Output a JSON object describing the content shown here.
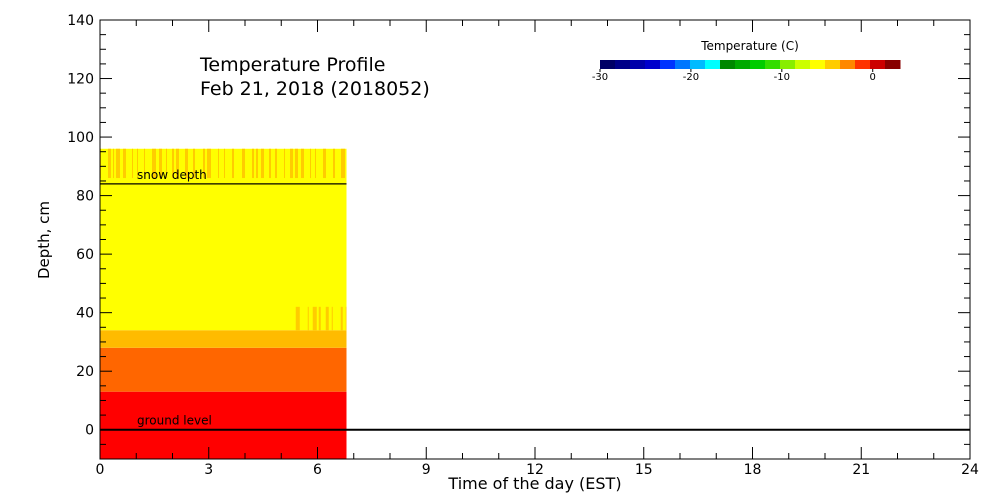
{
  "chart_data": {
    "type": "heatmap",
    "title": "Temperature Profile",
    "subtitle": "Feb 21, 2018 (2018052)",
    "xlabel": "Time of the day (EST)",
    "ylabel": "Depth, cm",
    "xlim": [
      0,
      24
    ],
    "ylim": [
      -10,
      140
    ],
    "x_ticks": [
      0,
      3,
      6,
      9,
      12,
      15,
      18,
      21,
      24
    ],
    "y_ticks": [
      0,
      20,
      40,
      60,
      80,
      100,
      120,
      140
    ],
    "data_extent_hours": 6.8,
    "layers": [
      {
        "depth_from": -10,
        "depth_to": 13,
        "temperature_c": -0.5,
        "color": "#ff0000"
      },
      {
        "depth_from": 13,
        "depth_to": 28,
        "temperature_c": -2,
        "color": "#ff6600"
      },
      {
        "depth_from": 28,
        "depth_to": 34,
        "temperature_c": -3.5,
        "color": "#ffbb00"
      },
      {
        "depth_from": 34,
        "depth_to": 96,
        "temperature_c": -5,
        "color": "#ffff00"
      }
    ],
    "mixed_bands": [
      {
        "depth_from": 34,
        "depth_to": 42,
        "hours_from": 5.4,
        "hours_to": 6.8,
        "color": "#ffcc00"
      },
      {
        "depth_from": 86,
        "depth_to": 96,
        "hours_from": 0,
        "hours_to": 6.8,
        "color": "#ffcc00"
      }
    ],
    "lines": [
      {
        "label": "snow depth",
        "value": 84
      },
      {
        "label": "ground level",
        "value": 0
      }
    ],
    "colorbar": {
      "title": "Temperature (C)",
      "range": [
        -30,
        3
      ],
      "tick_labels": [
        "-30",
        "-20",
        "-10",
        "0"
      ],
      "colors": [
        "#000066",
        "#000088",
        "#0000aa",
        "#0000cc",
        "#0033ff",
        "#0077ff",
        "#00bbff",
        "#00ffff",
        "#008800",
        "#00aa00",
        "#00cc00",
        "#33dd00",
        "#88ee00",
        "#ccff00",
        "#ffff00",
        "#ffcc00",
        "#ff8800",
        "#ff3300",
        "#cc0000",
        "#880000"
      ]
    }
  }
}
